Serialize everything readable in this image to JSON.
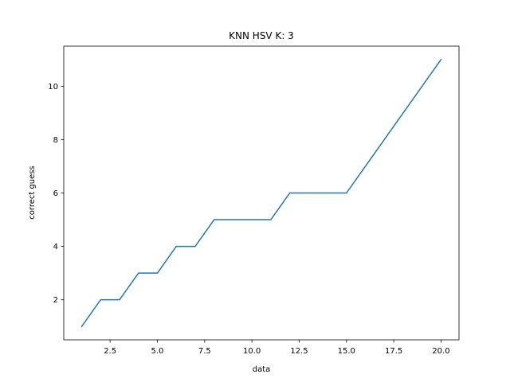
{
  "chart_data": {
    "type": "line",
    "title": "KNN HSV K: 3",
    "xlabel": "data",
    "ylabel": "correct guess",
    "xlim": [
      0.05,
      20.95
    ],
    "ylim": [
      0.5,
      11.5
    ],
    "xticks": [
      2.5,
      5.0,
      7.5,
      10.0,
      12.5,
      15.0,
      17.5,
      20.0
    ],
    "xtick_labels": [
      "2.5",
      "5.0",
      "7.5",
      "10.0",
      "12.5",
      "15.0",
      "17.5",
      "20.0"
    ],
    "yticks": [
      2,
      4,
      6,
      8,
      10
    ],
    "ytick_labels": [
      "2",
      "4",
      "6",
      "8",
      "10"
    ],
    "grid": false,
    "series": [
      {
        "color": "#1f77b4",
        "x": [
          1,
          2,
          3,
          4,
          5,
          6,
          7,
          8,
          9,
          10,
          11,
          12,
          13,
          14,
          15,
          16,
          17,
          18,
          19,
          20
        ],
        "y": [
          1,
          2,
          2,
          3,
          3,
          4,
          4,
          5,
          5,
          5,
          5,
          6,
          6,
          6,
          6,
          7,
          8,
          9,
          10,
          11
        ]
      }
    ]
  }
}
